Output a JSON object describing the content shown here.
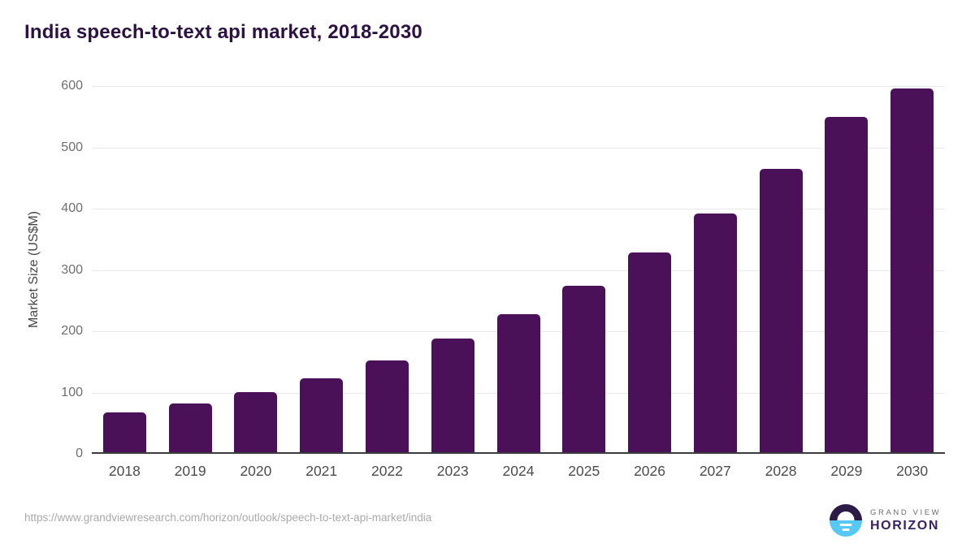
{
  "title": "India speech-to-text api market, 2018-2030",
  "footer": {
    "source_url": "https://www.grandviewresearch.com/horizon/outlook/speech-to-text-api-market/india",
    "logo": {
      "line1": "GRAND VIEW",
      "line2": "HORIZON"
    }
  },
  "colors": {
    "bar": "#4a1158",
    "title": "#2c1142",
    "gridline": "#e9e9ed",
    "axis_line": "#3b3b40",
    "logo_circle_top": "#2b1b46",
    "logo_circle_bottom": "#57c7f3"
  },
  "chart_data": {
    "type": "bar",
    "title": "India speech-to-text api market, 2018-2030",
    "categories": [
      "2018",
      "2019",
      "2020",
      "2021",
      "2022",
      "2023",
      "2024",
      "2025",
      "2026",
      "2027",
      "2028",
      "2029",
      "2030"
    ],
    "values": [
      65,
      79,
      98,
      120,
      150,
      185,
      225,
      271,
      326,
      389,
      462,
      547,
      594
    ],
    "xlabel": "",
    "ylabel": "Market Size (US$M)",
    "ylim": [
      0,
      600
    ],
    "yticks": [
      0,
      100,
      200,
      300,
      400,
      500,
      600
    ],
    "grid": true,
    "legend": false,
    "bar_color": "#4a1158"
  }
}
